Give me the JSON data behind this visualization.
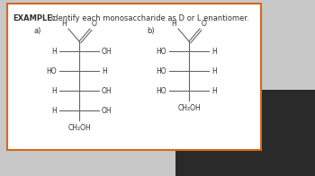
{
  "title_bold": "EXAMPLE:",
  "title_regular": " Identify each monosaccharide as D or L enantiomer.",
  "label_a": "a)",
  "label_b": "b)",
  "bg_color": "#c8c8c8",
  "box_bg": "#ffffff",
  "border_color": "#d4691e",
  "text_color": "#333333",
  "line_color": "#666666",
  "font_size_title": 6.0,
  "font_size_label": 6.0,
  "font_size_chem": 5.5,
  "structure_a": {
    "rows": [
      {
        "left": "H",
        "right": "OH"
      },
      {
        "left": "HO",
        "right": "H"
      },
      {
        "left": "H",
        "right": "OH"
      },
      {
        "left": "H",
        "right": "OH"
      }
    ],
    "bottom": "CH₂OH"
  },
  "structure_b": {
    "rows": [
      {
        "left": "HO",
        "right": "H"
      },
      {
        "left": "HO",
        "right": "H"
      },
      {
        "left": "HO",
        "right": "H"
      }
    ],
    "bottom": "CH₂OH"
  },
  "person_color": "#5a5a5a"
}
